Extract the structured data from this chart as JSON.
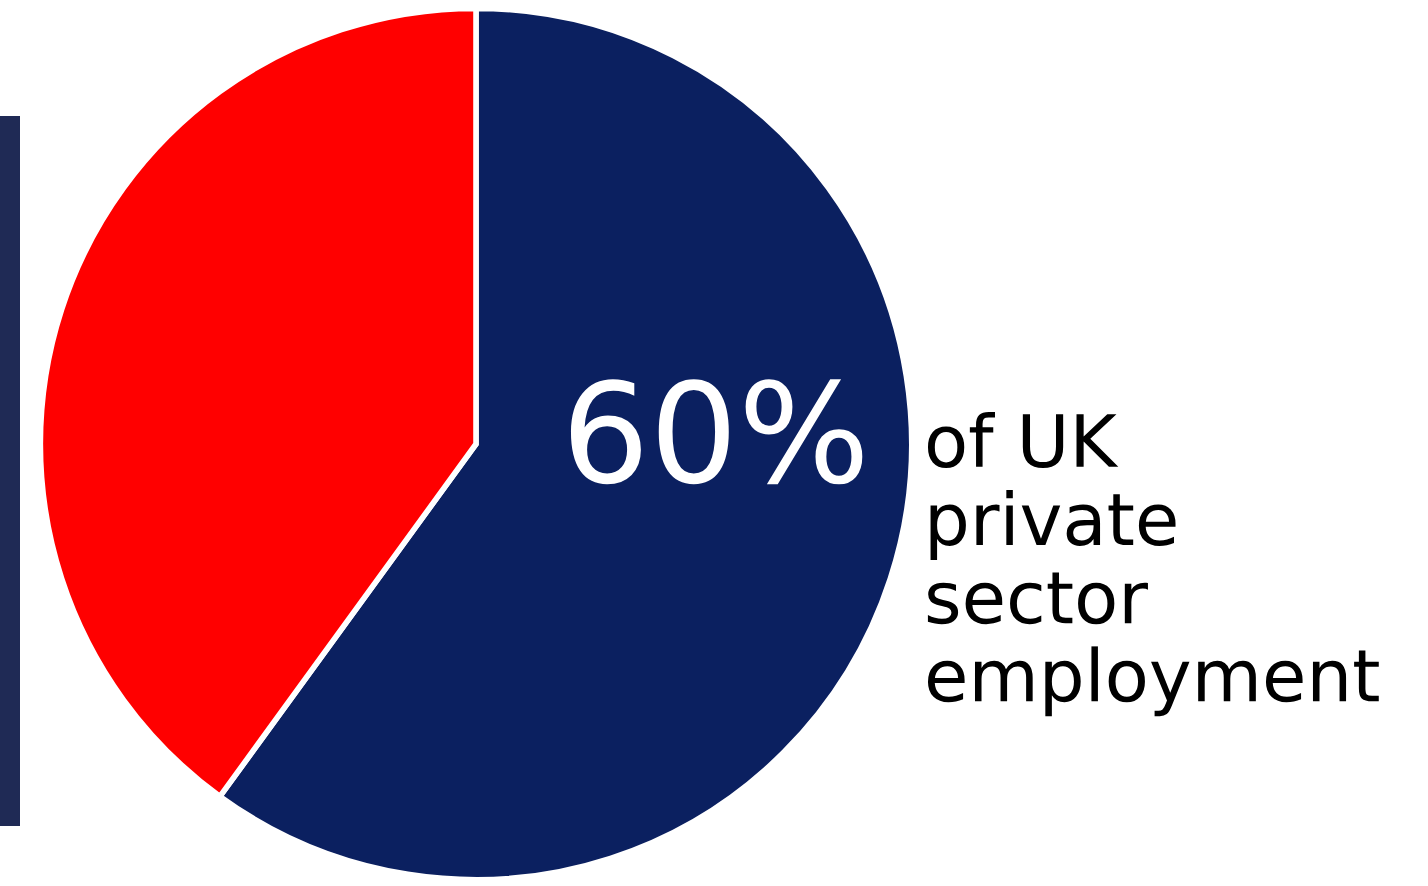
{
  "chart_data": {
    "type": "pie",
    "categories": [
      null,
      null
    ],
    "values": [
      60,
      40
    ],
    "colors": [
      "#0b2060",
      "#ff0000"
    ],
    "value_labels": [
      "60%",
      null
    ],
    "annotations": [
      "of UK\nprivate\nsector\nemployment"
    ]
  }
}
